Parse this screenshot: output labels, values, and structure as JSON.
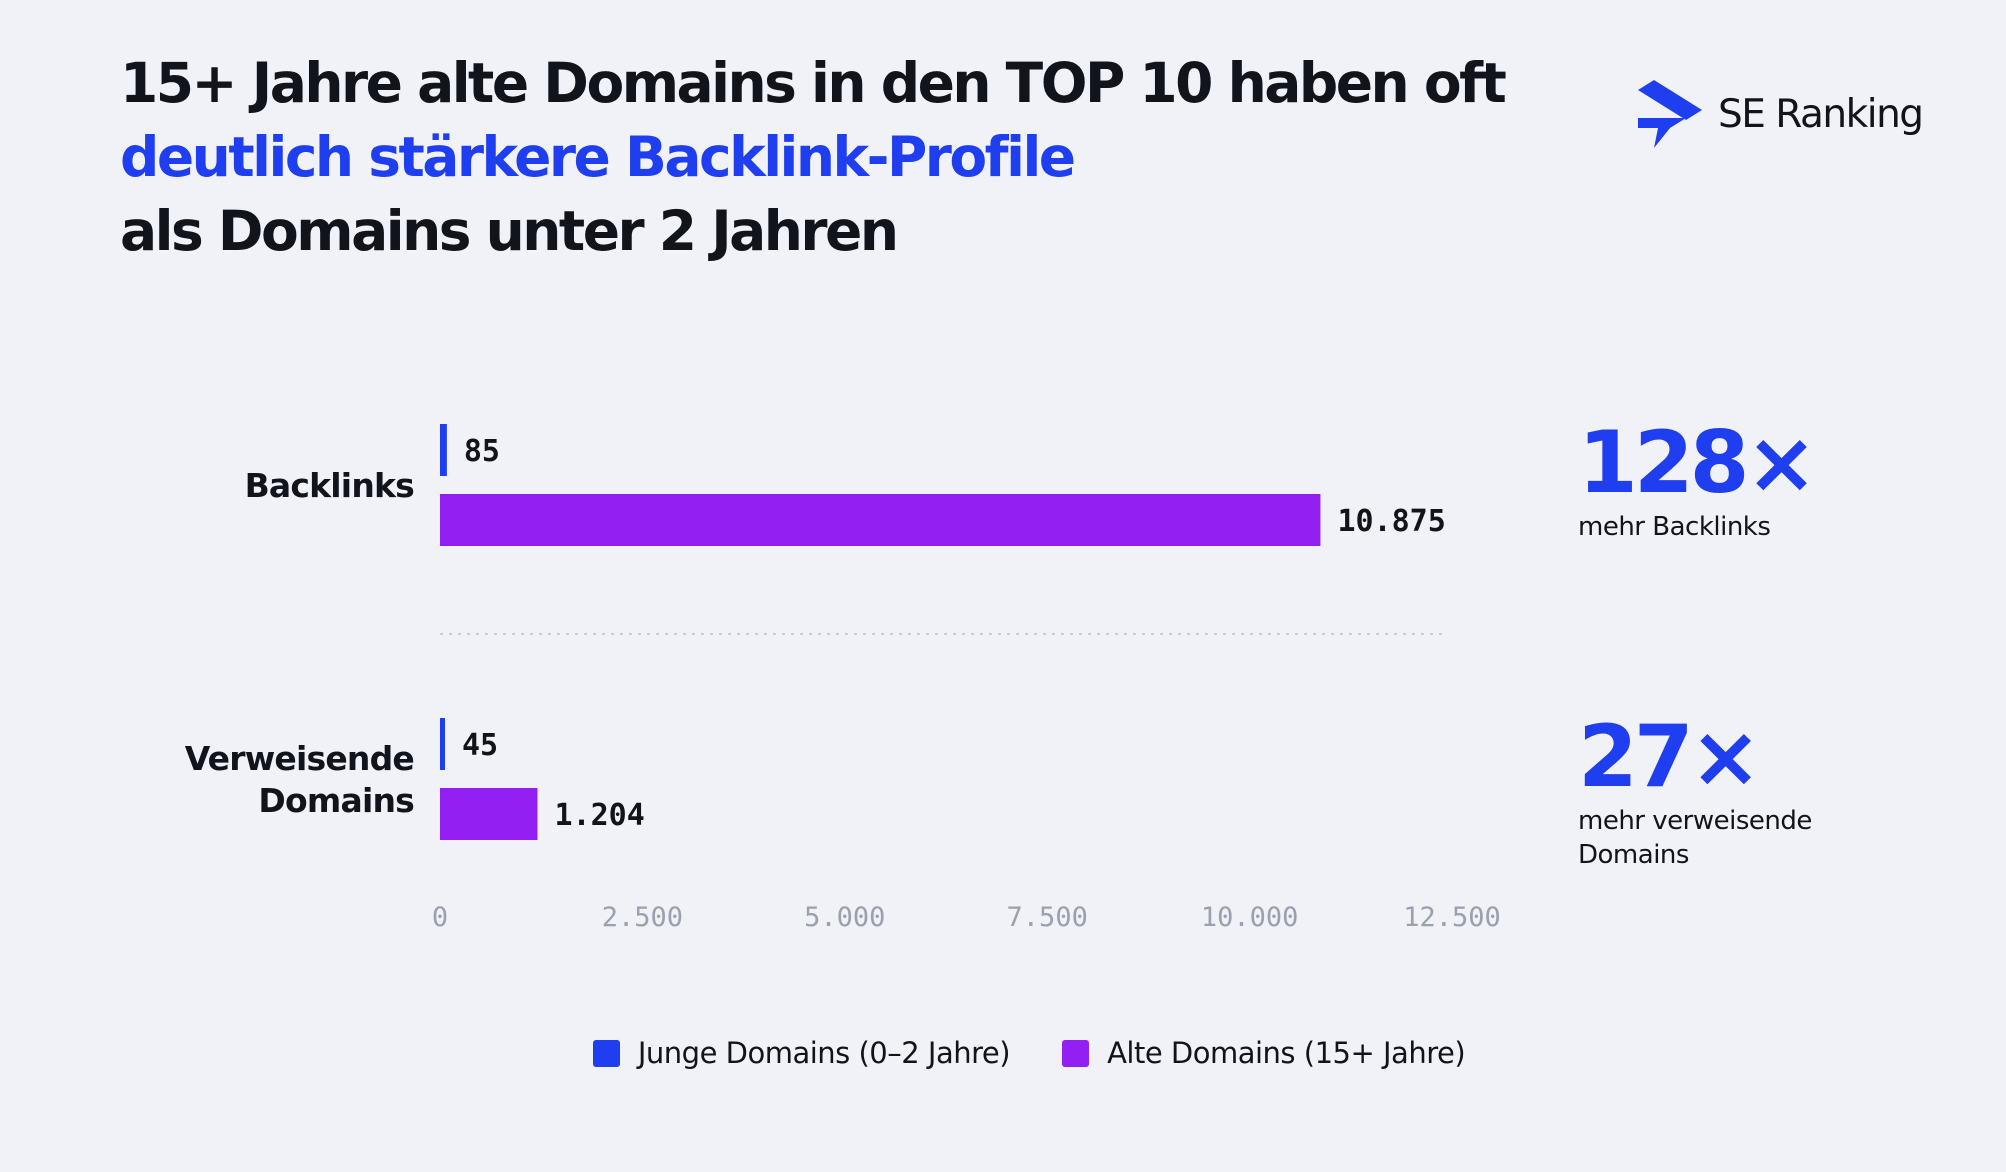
{
  "title": {
    "line1": "15+ Jahre alte Domains in den TOP 10 haben oft",
    "line2": "deutlich stärkere Backlink-Profile",
    "line3": "als Domains unter 2 Jahren"
  },
  "brand": {
    "name": "SE Ranking",
    "icon": "se-ranking-logo-icon"
  },
  "colors": {
    "young": "#1f3ef0",
    "old": "#9320f2",
    "accent": "#1f3ef0",
    "tick": "#9aa0ae"
  },
  "chart_data": {
    "type": "bar",
    "orientation": "horizontal",
    "categories": [
      [
        "Backlinks"
      ],
      [
        "Verweisende",
        "Domains"
      ]
    ],
    "series": [
      {
        "name": "Junge Domains (0–2 Jahre)",
        "values": [
          85,
          45
        ],
        "labels": [
          "85",
          "45"
        ]
      },
      {
        "name": "Alte Domains (15+ Jahre)",
        "values": [
          10875,
          1204
        ],
        "labels": [
          "10.875",
          "1.204"
        ]
      }
    ],
    "x_ticks": [
      0,
      2500,
      5000,
      7500,
      10000,
      12500
    ],
    "x_tick_labels": [
      "0",
      "2.500",
      "5.000",
      "7.500",
      "10.000",
      "12.500"
    ],
    "xlim": [
      0,
      12500
    ],
    "legend": "bottom",
    "grid": false
  },
  "stats": [
    {
      "value": "128×",
      "label": "mehr Backlinks"
    },
    {
      "value": "27×",
      "label": "mehr verweisende Domains"
    }
  ]
}
